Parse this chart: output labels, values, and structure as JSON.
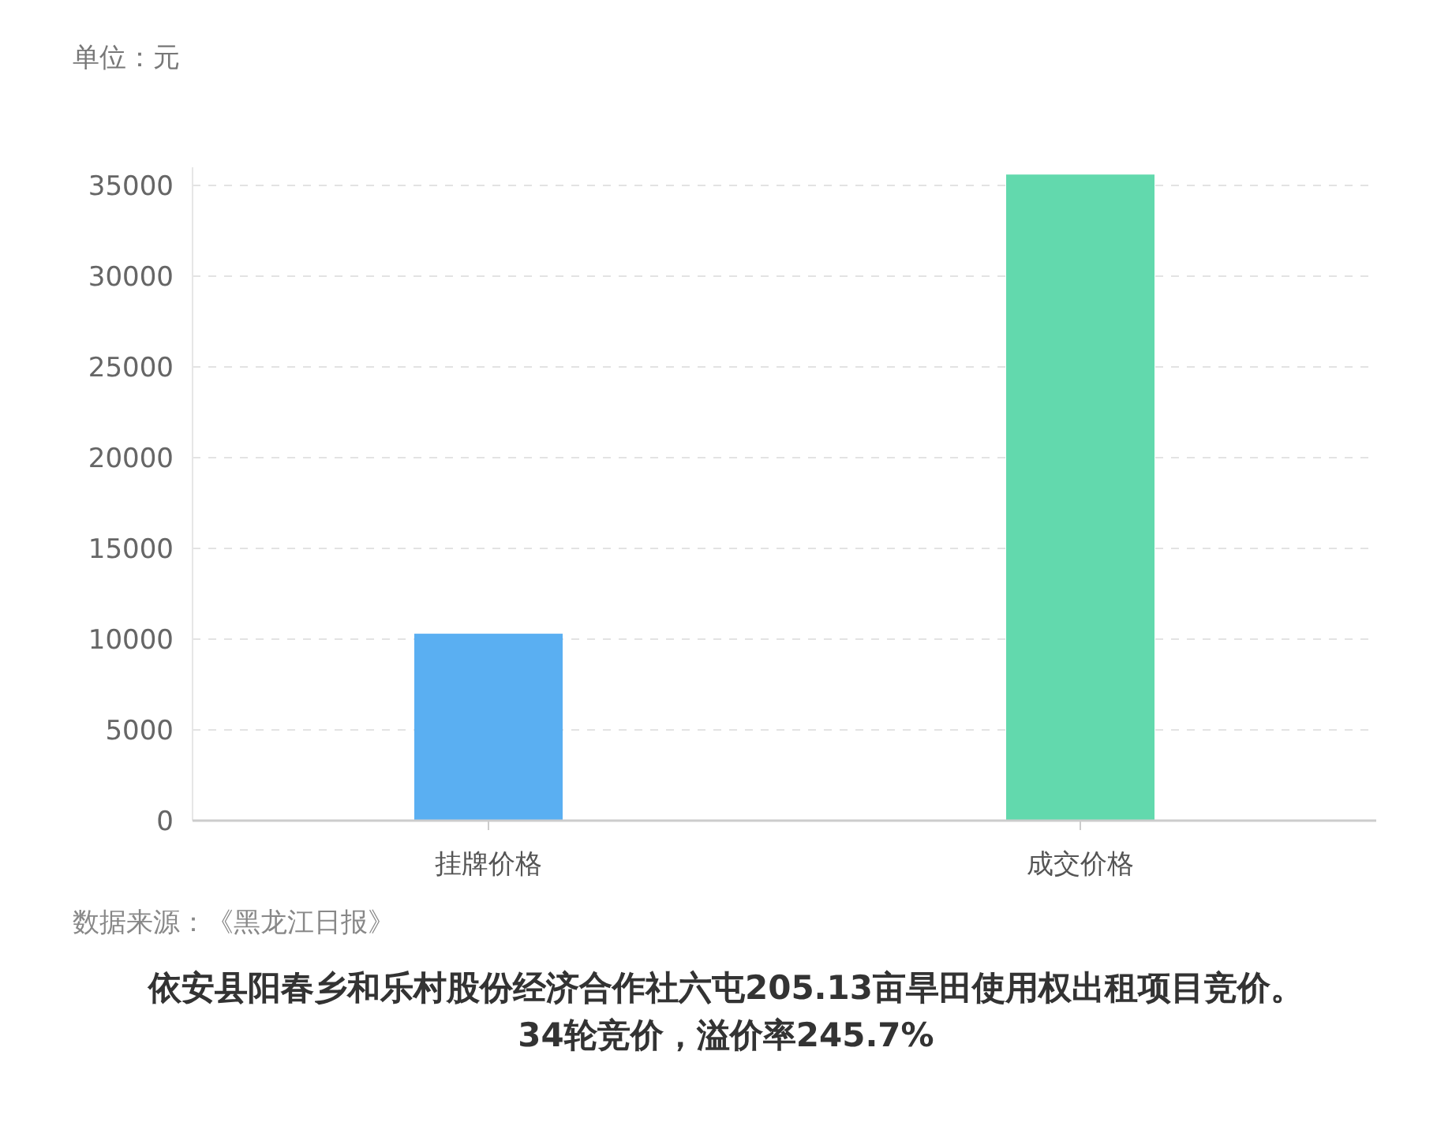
{
  "chart_data": {
    "type": "bar",
    "title": "依安县阳春乡和乐村股份经济合作社六屯205.13亩旱田使用权出租项目竞价。34轮竞价，溢价率245.7%",
    "ylabel": "单位：元",
    "annotations": [
      "数据来源：《黑龙江日报》"
    ],
    "categories": [
      "挂牌价格",
      "成交价格"
    ],
    "values": [
      10300,
      35600
    ],
    "colors": [
      "#5aaff2",
      "#62d9ad"
    ],
    "ylim": [
      0,
      36000
    ],
    "yticks": [
      0,
      5000,
      10000,
      15000,
      20000,
      25000,
      30000,
      35000
    ],
    "grid": "y"
  }
}
